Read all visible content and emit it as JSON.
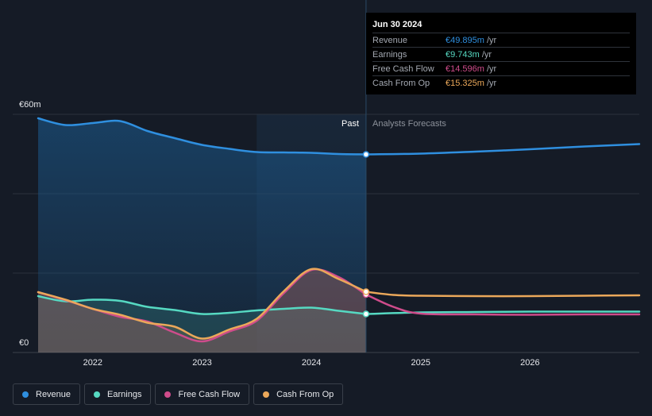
{
  "chart_data": {
    "type": "area",
    "y_axis": {
      "top_label": "€60m",
      "bottom_label": "€0",
      "ylim": [
        0,
        60
      ]
    },
    "x_ticks": [
      "2022",
      "2023",
      "2024",
      "2025",
      "2026"
    ],
    "x_range": [
      2021.5,
      2027.0
    ],
    "past_label": "Past",
    "forecast_label": "Analysts Forecasts",
    "past_end": 2024.5,
    "shade_start": 2023.5,
    "series": [
      {
        "name": "Revenue",
        "color": "#2f8fdf",
        "fill": true,
        "points": [
          [
            2021.5,
            59
          ],
          [
            2021.75,
            57.3
          ],
          [
            2022.0,
            57.8
          ],
          [
            2022.25,
            58.3
          ],
          [
            2022.5,
            55.8
          ],
          [
            2022.75,
            54
          ],
          [
            2023.0,
            52.3
          ],
          [
            2023.25,
            51.3
          ],
          [
            2023.5,
            50.5
          ],
          [
            2023.75,
            50.4
          ],
          [
            2024.0,
            50.3
          ],
          [
            2024.25,
            50
          ],
          [
            2024.5,
            49.9
          ]
        ],
        "forecast": [
          [
            2024.5,
            49.9
          ],
          [
            2025.0,
            50.1
          ],
          [
            2025.5,
            50.6
          ],
          [
            2026.0,
            51.2
          ],
          [
            2026.5,
            51.9
          ],
          [
            2027.0,
            52.5
          ]
        ]
      },
      {
        "name": "Earnings",
        "color": "#56d9c2",
        "fill": true,
        "points": [
          [
            2021.5,
            14.2
          ],
          [
            2021.75,
            12.9
          ],
          [
            2022.0,
            13.3
          ],
          [
            2022.25,
            13
          ],
          [
            2022.5,
            11.5
          ],
          [
            2022.75,
            10.7
          ],
          [
            2023.0,
            9.7
          ],
          [
            2023.25,
            10
          ],
          [
            2023.5,
            10.6
          ],
          [
            2023.75,
            11
          ],
          [
            2024.0,
            11.3
          ],
          [
            2024.25,
            10.5
          ],
          [
            2024.5,
            9.7
          ]
        ],
        "forecast": [
          [
            2024.5,
            9.7
          ],
          [
            2025.0,
            10.1
          ],
          [
            2025.5,
            10.2
          ],
          [
            2026.0,
            10.3
          ],
          [
            2026.5,
            10.3
          ],
          [
            2027.0,
            10.3
          ]
        ]
      },
      {
        "name": "Free Cash Flow",
        "color": "#cf4c8b",
        "fill": true,
        "points": [
          [
            2021.5,
            15.2
          ],
          [
            2021.75,
            13.2
          ],
          [
            2022.0,
            11
          ],
          [
            2022.25,
            9
          ],
          [
            2022.5,
            7.8
          ],
          [
            2022.75,
            5
          ],
          [
            2023.0,
            2.8
          ],
          [
            2023.25,
            5.3
          ],
          [
            2023.5,
            8
          ],
          [
            2023.75,
            15
          ],
          [
            2024.0,
            20.8
          ],
          [
            2024.25,
            19
          ],
          [
            2024.5,
            14.6
          ]
        ],
        "forecast": [
          [
            2024.5,
            14.6
          ],
          [
            2024.75,
            11.5
          ],
          [
            2025.0,
            9.8
          ],
          [
            2025.5,
            9.6
          ],
          [
            2026.0,
            9.5
          ],
          [
            2026.5,
            9.6
          ],
          [
            2027.0,
            9.6
          ]
        ]
      },
      {
        "name": "Cash From Op",
        "color": "#eba85a",
        "fill": true,
        "points": [
          [
            2021.5,
            15.2
          ],
          [
            2021.75,
            13.3
          ],
          [
            2022.0,
            11
          ],
          [
            2022.25,
            9.5
          ],
          [
            2022.5,
            7.5
          ],
          [
            2022.75,
            6.5
          ],
          [
            2023.0,
            3.5
          ],
          [
            2023.25,
            5.8
          ],
          [
            2023.5,
            8.5
          ],
          [
            2023.75,
            15.5
          ],
          [
            2024.0,
            21
          ],
          [
            2024.25,
            18.5
          ],
          [
            2024.5,
            15.3
          ]
        ],
        "forecast": [
          [
            2024.5,
            15.3
          ],
          [
            2024.75,
            14.5
          ],
          [
            2025.0,
            14.3
          ],
          [
            2025.5,
            14.2
          ],
          [
            2026.0,
            14.2
          ],
          [
            2026.5,
            14.3
          ],
          [
            2027.0,
            14.4
          ]
        ]
      }
    ]
  },
  "tooltip": {
    "date": "Jun 30 2024",
    "unit": "/yr",
    "rows": [
      {
        "name": "Revenue",
        "value": "€49.895m",
        "color": "#2f8fdf"
      },
      {
        "name": "Earnings",
        "value": "€9.743m",
        "color": "#56d9c2"
      },
      {
        "name": "Free Cash Flow",
        "value": "€14.596m",
        "color": "#cf4c8b"
      },
      {
        "name": "Cash From Op",
        "value": "€15.325m",
        "color": "#eba85a"
      }
    ]
  },
  "legend": [
    {
      "label": "Revenue",
      "color": "#2f8fdf"
    },
    {
      "label": "Earnings",
      "color": "#56d9c2"
    },
    {
      "label": "Free Cash Flow",
      "color": "#cf4c8b"
    },
    {
      "label": "Cash From Op",
      "color": "#eba85a"
    }
  ]
}
